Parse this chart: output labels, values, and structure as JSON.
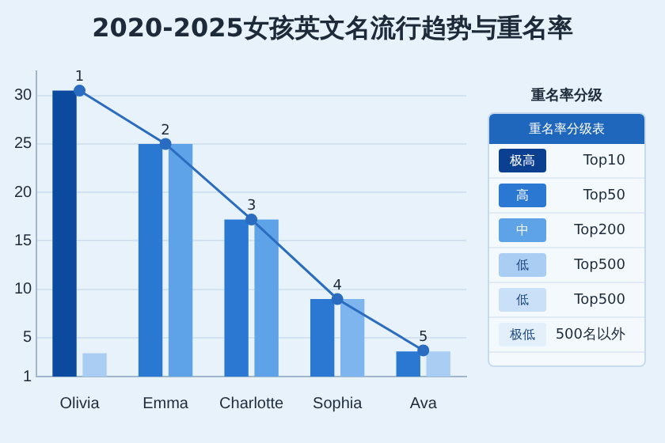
{
  "chart_data": [
    {
      "type": "bar",
      "title": "2020-2025女孩英文名流行趋势与重名率",
      "categories": [
        "Olivia",
        "Emma",
        "Charlotte",
        "Sophia",
        "Ava"
      ],
      "series": [
        {
          "colors": [
            "#0b4a9e",
            "#2a78d2",
            "#2a78d2",
            "#2a78d2",
            "#2a78d2"
          ],
          "values": [
            30.5,
            25,
            17.2,
            9,
            3.6
          ]
        },
        {
          "colors": [
            "#a9cdf3",
            "#5ea2e8",
            "#5ea2e8",
            "#7fb5ee",
            "#a9cdf3"
          ],
          "values": [
            3.4,
            25,
            17.2,
            9,
            3.6
          ]
        },
        {
          "type": "line",
          "color": "#2a6cc0",
          "values": [
            30.5,
            25,
            17.2,
            9,
            3.7
          ]
        }
      ],
      "annotations": [
        {
          "text": "1",
          "x": "Olivia",
          "y": 30.5
        },
        {
          "text": "2",
          "x": "Emma",
          "y": 25
        },
        {
          "text": "3",
          "x": "Charlotte",
          "y": 17.2
        },
        {
          "text": "4",
          "x": "Sophia",
          "y": 9
        },
        {
          "text": "5",
          "x": "Ava",
          "y": 3.7
        }
      ],
      "marker": "circle",
      "ylim": [
        1,
        32.5
      ],
      "yticks": [
        1,
        5,
        10,
        15,
        20,
        25,
        30
      ],
      "grid": "y",
      "legend": false
    },
    {
      "type": "other",
      "title": "重名率分级",
      "subtitle": "重名率分级表",
      "categories": [
        "极高",
        "高",
        "中",
        "低",
        "低",
        "极低"
      ],
      "colors": [
        "#0b3f8f",
        "#2a78d2",
        "#5ea2e8",
        "#a9cdf3",
        "#c9e0f8",
        "#e3effb"
      ],
      "annotations": [
        "Top10",
        "Top50",
        "Top200",
        "Top500",
        "Top500",
        "500名以外"
      ]
    }
  ]
}
